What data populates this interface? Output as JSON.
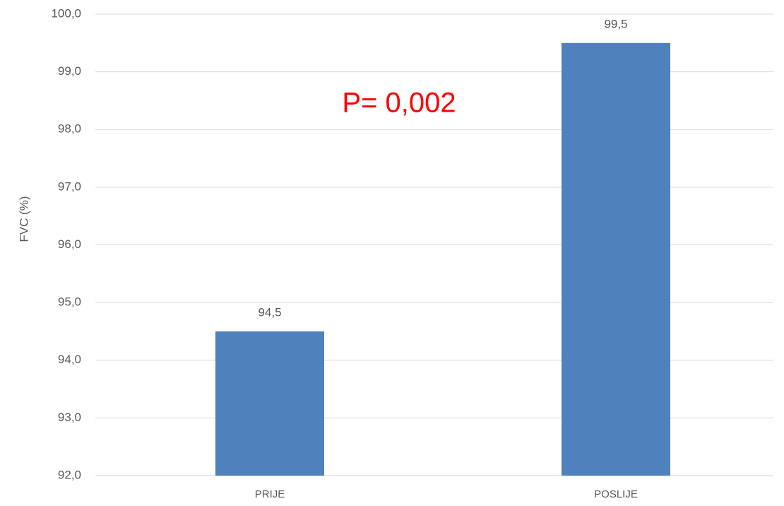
{
  "chart_data": {
    "type": "bar",
    "y_label": "FVC (%)",
    "annotation": "P= 0,002",
    "categories": [
      "PRIJE",
      "POSLIJE"
    ],
    "values": [
      94.5,
      99.5
    ],
    "value_labels": [
      "94,5",
      "99,5"
    ],
    "color": "#4f81bd",
    "annotation_color": "#ff0000",
    "ylim": [
      92,
      100
    ],
    "yticks": [
      {
        "value": 92,
        "label": "92,0"
      },
      {
        "value": 93,
        "label": "93,0"
      },
      {
        "value": 94,
        "label": "94,0"
      },
      {
        "value": 95,
        "label": "95,0"
      },
      {
        "value": 96,
        "label": "96,0"
      },
      {
        "value": 97,
        "label": "97,0"
      },
      {
        "value": 98,
        "label": "98,0"
      },
      {
        "value": 99,
        "label": "99,0"
      },
      {
        "value": 100,
        "label": "100,0"
      }
    ],
    "grid": true
  }
}
